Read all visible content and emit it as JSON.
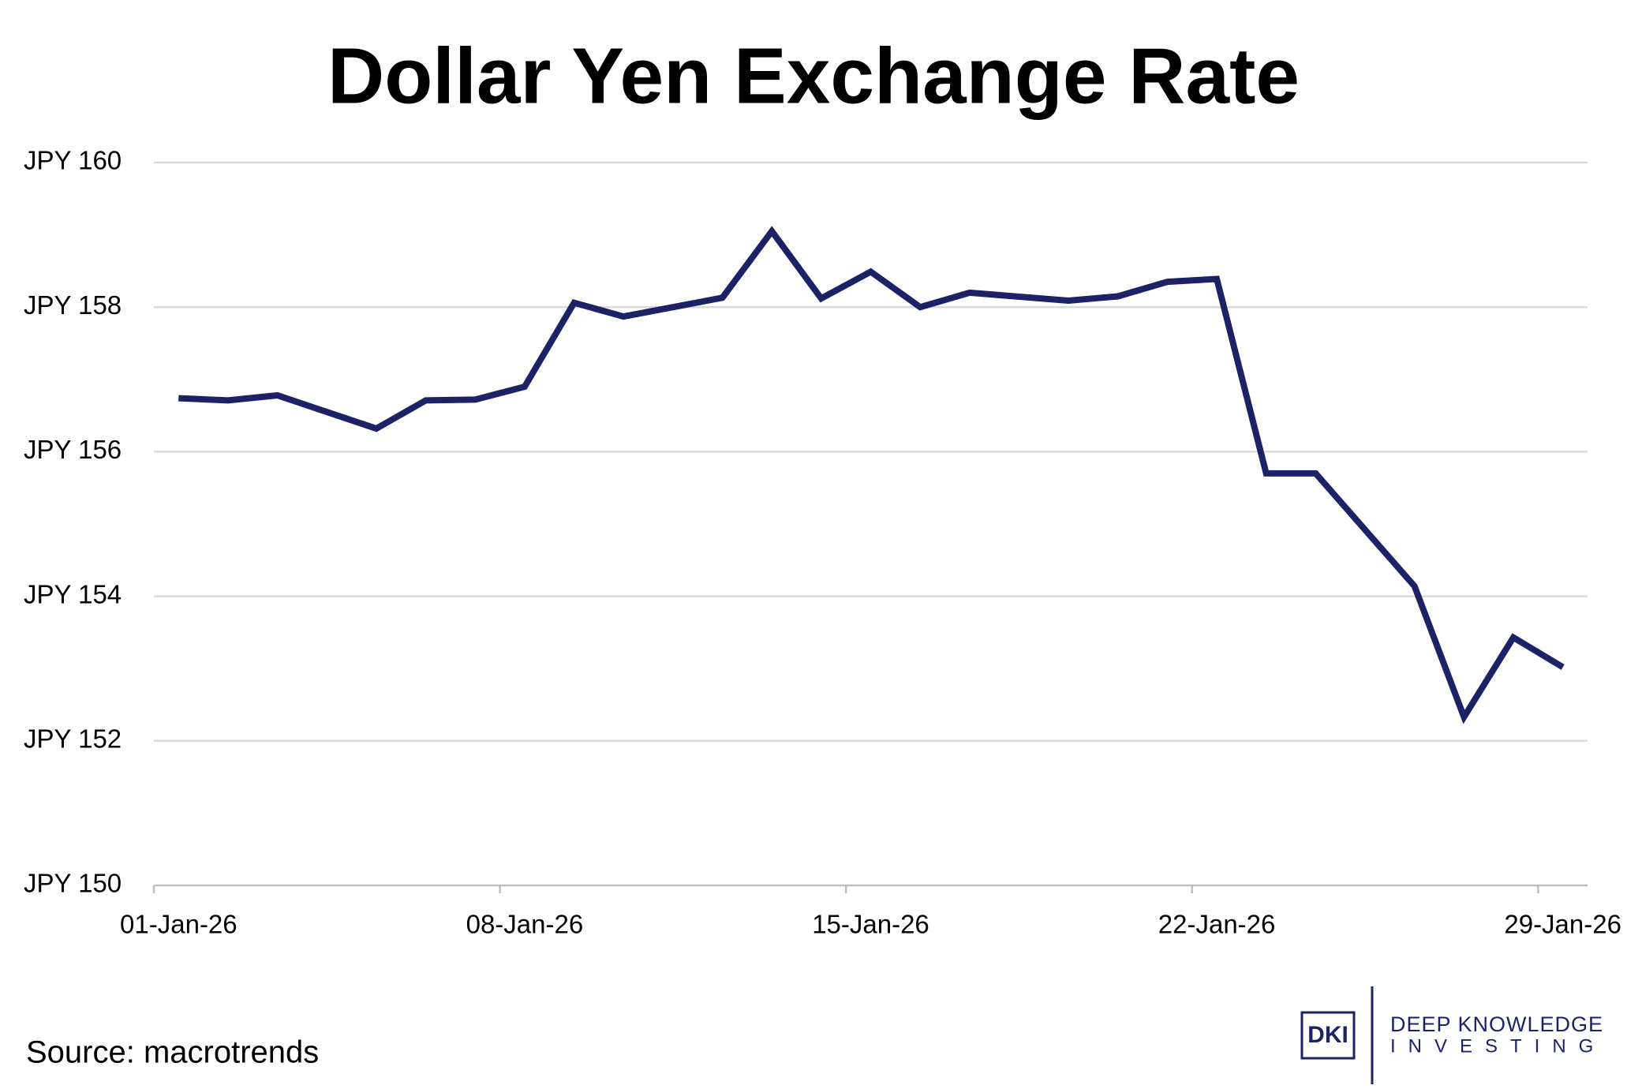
{
  "chart_data": {
    "type": "line",
    "title": "Dollar Yen Exchange Rate",
    "x": [
      "2026-01-01",
      "2026-01-02",
      "2026-01-03",
      "2026-01-05",
      "2026-01-06",
      "2026-01-07",
      "2026-01-08",
      "2026-01-09",
      "2026-01-10",
      "2026-01-12",
      "2026-01-13",
      "2026-01-14",
      "2026-01-15",
      "2026-01-16",
      "2026-01-17",
      "2026-01-19",
      "2026-01-20",
      "2026-01-21",
      "2026-01-22",
      "2026-01-23",
      "2026-01-24",
      "2026-01-26",
      "2026-01-27",
      "2026-01-28",
      "2026-01-29"
    ],
    "values": [
      156.74,
      156.71,
      156.78,
      156.32,
      156.71,
      156.72,
      156.9,
      158.06,
      157.87,
      158.13,
      159.05,
      158.12,
      158.49,
      158.0,
      158.2,
      158.09,
      158.15,
      158.35,
      158.39,
      155.7,
      155.7,
      154.14,
      152.33,
      153.43,
      153.02
    ],
    "color": "#1b2366",
    "xlim": [
      "2026-01-01",
      "2026-01-29"
    ],
    "xticks": [
      {
        "value": "2026-01-01",
        "label": "01-Jan-26"
      },
      {
        "value": "2026-01-08",
        "label": "08-Jan-26"
      },
      {
        "value": "2026-01-15",
        "label": "15-Jan-26"
      },
      {
        "value": "2026-01-22",
        "label": "22-Jan-26"
      },
      {
        "value": "2026-01-29",
        "label": "29-Jan-26"
      }
    ],
    "ylim": [
      150,
      160
    ],
    "yticks": [
      {
        "value": 150,
        "label": "JPY 150"
      },
      {
        "value": 152,
        "label": "JPY 152"
      },
      {
        "value": 154,
        "label": "JPY 154"
      },
      {
        "value": 156,
        "label": "JPY 156"
      },
      {
        "value": 158,
        "label": "JPY 158"
      },
      {
        "value": 160,
        "label": "JPY 160"
      }
    ],
    "grid": true,
    "source": "Source: macrotrends",
    "logo": {
      "mark": "DKI",
      "line1": "DEEP KNOWLEDGE",
      "line2": "INVESTING"
    }
  }
}
